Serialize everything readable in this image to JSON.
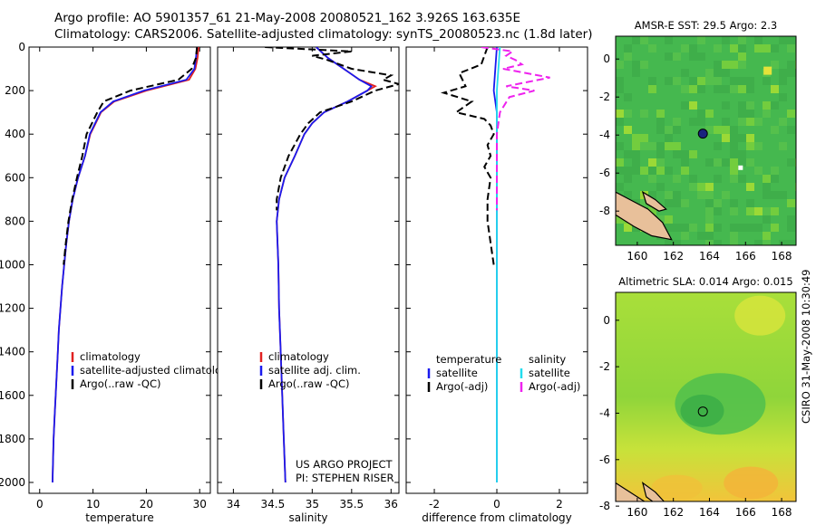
{
  "header": {
    "line1": "Argo profile: AO 5901357_61 21-May-2008 20080521_162 3.926S 163.635E",
    "line2": "Climatology: CARS2006. Satellite-adjusted climatology: synTS_20080523.nc (1.8d later)"
  },
  "side_label": "CSIRO 31-May-2008 10:30:49",
  "colors": {
    "climatology": "#e02020",
    "satellite": "#1a1aee",
    "argo": "#000000",
    "sat_salinity": "#22ddee",
    "argo_salinity": "#ee22ee"
  },
  "chart_data": [
    {
      "type": "line",
      "xlabel": "temperature",
      "ylabel": "",
      "xlim": [
        -2,
        32
      ],
      "ylim": [
        2050,
        0
      ],
      "xticks": [
        "0",
        "10",
        "20",
        "30"
      ],
      "yticks": [
        "0",
        "200",
        "400",
        "600",
        "800",
        "1000",
        "1200",
        "1400",
        "1600",
        "1800",
        "2000"
      ],
      "legend": {
        "placement": "center-right",
        "entries": [
          "climatology",
          "satellite-adjusted climatology",
          "Argo(..raw -QC)"
        ]
      },
      "series": [
        {
          "name": "climatology",
          "color": "#e02020",
          "style": "solid",
          "points": [
            [
              29.8,
              0
            ],
            [
              29.6,
              50
            ],
            [
              29.2,
              100
            ],
            [
              28,
              150
            ],
            [
              20,
              200
            ],
            [
              14,
              250
            ],
            [
              11.5,
              300
            ],
            [
              10.5,
              350
            ],
            [
              9.5,
              400
            ],
            [
              8.5,
              500
            ],
            [
              7.2,
              600
            ],
            [
              6.2,
              700
            ],
            [
              5.5,
              800
            ],
            [
              5,
              900
            ],
            [
              4.6,
              1000
            ],
            [
              4.2,
              1100
            ],
            [
              3.9,
              1200
            ],
            [
              3.6,
              1300
            ],
            [
              3.4,
              1400
            ],
            [
              3.2,
              1500
            ],
            [
              3,
              1600
            ],
            [
              2.8,
              1700
            ],
            [
              2.6,
              1800
            ],
            [
              2.5,
              1900
            ],
            [
              2.4,
              2000
            ]
          ]
        },
        {
          "name": "satellite-adjusted climatology",
          "color": "#1a1aee",
          "style": "solid",
          "points": [
            [
              29.5,
              0
            ],
            [
              29.3,
              50
            ],
            [
              29,
              100
            ],
            [
              27.5,
              150
            ],
            [
              19.5,
              200
            ],
            [
              13.8,
              250
            ],
            [
              11.4,
              300
            ],
            [
              10.4,
              350
            ],
            [
              9.4,
              400
            ],
            [
              8.5,
              500
            ],
            [
              7.2,
              600
            ],
            [
              6.2,
              700
            ],
            [
              5.5,
              800
            ],
            [
              5,
              900
            ],
            [
              4.6,
              1000
            ],
            [
              4.2,
              1100
            ],
            [
              3.9,
              1200
            ],
            [
              3.6,
              1300
            ],
            [
              3.4,
              1400
            ],
            [
              3.2,
              1500
            ],
            [
              3,
              1600
            ],
            [
              2.8,
              1700
            ],
            [
              2.6,
              1800
            ],
            [
              2.5,
              1900
            ],
            [
              2.4,
              2000
            ]
          ]
        },
        {
          "name": "Argo(..raw -QC)",
          "color": "#000000",
          "style": "dashed",
          "points": [
            [
              29.5,
              0
            ],
            [
              29.3,
              50
            ],
            [
              28.5,
              100
            ],
            [
              26,
              150
            ],
            [
              17,
              200
            ],
            [
              12,
              250
            ],
            [
              10.8,
              300
            ],
            [
              9.8,
              350
            ],
            [
              8.8,
              400
            ],
            [
              8,
              500
            ],
            [
              7,
              600
            ],
            [
              6.1,
              700
            ],
            [
              5.4,
              800
            ],
            [
              4.9,
              900
            ],
            [
              4.5,
              1000
            ]
          ]
        }
      ]
    },
    {
      "type": "line",
      "xlabel": "salinity",
      "ylabel": "",
      "xlim": [
        33.8,
        36.1
      ],
      "ylim": [
        2050,
        0
      ],
      "xticks": [
        "34",
        "34.5",
        "35",
        "35.5",
        "36"
      ],
      "legend": {
        "placement": "center-right",
        "entries": [
          "climatology",
          "satellite adj. clim.",
          "Argo(..raw -QC)"
        ]
      },
      "annotation": [
        "US ARGO PROJECT",
        "PI: STEPHEN RISER"
      ],
      "series": [
        {
          "name": "climatology",
          "color": "#e02020",
          "style": "solid",
          "points": [
            [
              35.05,
              0
            ],
            [
              35.2,
              50
            ],
            [
              35.4,
              100
            ],
            [
              35.6,
              150
            ],
            [
              35.8,
              180
            ],
            [
              35.7,
              200
            ],
            [
              35.45,
              250
            ],
            [
              35.15,
              300
            ],
            [
              35,
              350
            ],
            [
              34.9,
              400
            ],
            [
              34.78,
              500
            ],
            [
              34.65,
              600
            ],
            [
              34.58,
              700
            ],
            [
              34.55,
              800
            ],
            [
              34.56,
              900
            ],
            [
              34.57,
              1000
            ],
            [
              34.58,
              1200
            ],
            [
              34.6,
              1400
            ],
            [
              34.62,
              1600
            ],
            [
              34.64,
              1800
            ],
            [
              34.66,
              2000
            ]
          ]
        },
        {
          "name": "satellite adj. clim.",
          "color": "#1a1aee",
          "style": "solid",
          "points": [
            [
              35.05,
              0
            ],
            [
              35.2,
              50
            ],
            [
              35.4,
              100
            ],
            [
              35.6,
              150
            ],
            [
              35.75,
              180
            ],
            [
              35.7,
              200
            ],
            [
              35.45,
              250
            ],
            [
              35.15,
              300
            ],
            [
              35,
              350
            ],
            [
              34.9,
              400
            ],
            [
              34.78,
              500
            ],
            [
              34.65,
              600
            ],
            [
              34.58,
              700
            ],
            [
              34.55,
              800
            ],
            [
              34.56,
              900
            ],
            [
              34.57,
              1000
            ],
            [
              34.58,
              1200
            ],
            [
              34.6,
              1400
            ],
            [
              34.62,
              1600
            ],
            [
              34.64,
              1800
            ],
            [
              34.66,
              2000
            ]
          ]
        },
        {
          "name": "Argo(..raw -QC)",
          "color": "#000000",
          "style": "dashed",
          "points": [
            [
              34.4,
              0
            ],
            [
              35.5,
              20
            ],
            [
              35.0,
              40
            ],
            [
              35.2,
              60
            ],
            [
              35.5,
              100
            ],
            [
              36.0,
              130
            ],
            [
              35.9,
              150
            ],
            [
              36.1,
              170
            ],
            [
              35.8,
              200
            ],
            [
              35.5,
              250
            ],
            [
              35.1,
              300
            ],
            [
              34.95,
              350
            ],
            [
              34.85,
              400
            ],
            [
              34.7,
              500
            ],
            [
              34.6,
              600
            ],
            [
              34.55,
              700
            ],
            [
              34.55,
              750
            ]
          ]
        }
      ]
    },
    {
      "type": "line",
      "xlabel": "difference from climatology",
      "ylabel": "",
      "xlim": [
        -2.9,
        2.9
      ],
      "ylim": [
        2050,
        0
      ],
      "xticks": [
        "-2",
        "0",
        "2"
      ],
      "legend": {
        "placement": "center",
        "temperature_title": "temperature",
        "salinity_title": "salinity",
        "entries": [
          "satellite",
          "Argo(-adj)",
          "satellite",
          "Argo(-adj)"
        ]
      },
      "series": [
        {
          "name": "satellite",
          "group": "temperature",
          "color": "#1a1aee",
          "style": "solid",
          "points": [
            [
              0,
              0
            ],
            [
              -0.05,
              100
            ],
            [
              -0.1,
              200
            ],
            [
              0,
              300
            ],
            [
              0,
              500
            ],
            [
              0,
              1000
            ],
            [
              0,
              1500
            ],
            [
              0,
              2000
            ]
          ]
        },
        {
          "name": "Argo(-adj)",
          "group": "temperature",
          "color": "#000000",
          "style": "dashed",
          "points": [
            [
              -0.3,
              0
            ],
            [
              -0.5,
              80
            ],
            [
              -1.2,
              120
            ],
            [
              -1.0,
              180
            ],
            [
              -1.7,
              210
            ],
            [
              -0.8,
              250
            ],
            [
              -1.3,
              300
            ],
            [
              -0.4,
              330
            ],
            [
              -0.2,
              360
            ],
            [
              -0.1,
              400
            ],
            [
              -0.3,
              450
            ],
            [
              -0.2,
              500
            ],
            [
              -0.4,
              550
            ],
            [
              -0.2,
              600
            ],
            [
              -0.3,
              700
            ],
            [
              -0.3,
              800
            ],
            [
              -0.2,
              900
            ],
            [
              -0.1,
              1000
            ]
          ]
        },
        {
          "name": "satellite",
          "group": "salinity",
          "color": "#22ddee",
          "style": "solid",
          "points": [
            [
              0.1,
              0
            ],
            [
              0.05,
              100
            ],
            [
              0,
              200
            ],
            [
              0,
              500
            ],
            [
              0,
              1000
            ],
            [
              0,
              1500
            ],
            [
              0,
              2000
            ]
          ]
        },
        {
          "name": "Argo(-adj)",
          "group": "salinity",
          "color": "#ee22ee",
          "style": "dashed",
          "points": [
            [
              -0.5,
              0
            ],
            [
              0.5,
              20
            ],
            [
              0.3,
              40
            ],
            [
              0.6,
              60
            ],
            [
              0.8,
              80
            ],
            [
              0.2,
              100
            ],
            [
              1.7,
              140
            ],
            [
              0.3,
              180
            ],
            [
              1.2,
              200
            ],
            [
              0.4,
              230
            ],
            [
              0.1,
              300
            ],
            [
              0,
              400
            ],
            [
              0,
              500
            ],
            [
              0,
              700
            ],
            [
              0,
              750
            ]
          ]
        }
      ]
    },
    {
      "type": "heatmap",
      "title": "AMSR-E SST: 29.5 Argo: 2.3",
      "xticks": [
        "160",
        "162",
        "164",
        "166",
        "168"
      ],
      "yticks": [
        "0",
        "-2",
        "-4",
        "-6",
        "-8"
      ],
      "xlim": [
        158.8,
        168.8
      ],
      "ylim": [
        -9.8,
        1.2
      ],
      "marker": {
        "lon": 163.635,
        "lat": -3.926
      }
    },
    {
      "type": "heatmap",
      "title": "Altimetric SLA: 0.014 Argo: 0.015",
      "xticks": [
        "160",
        "162",
        "164",
        "166",
        "168"
      ],
      "yticks": [
        "0",
        "-2",
        "-4",
        "-6",
        "-8"
      ],
      "xlim": [
        158.8,
        168.8
      ],
      "ylim": [
        -7.8,
        1.2
      ],
      "marker": {
        "lon": 163.635,
        "lat": -3.926
      }
    }
  ]
}
